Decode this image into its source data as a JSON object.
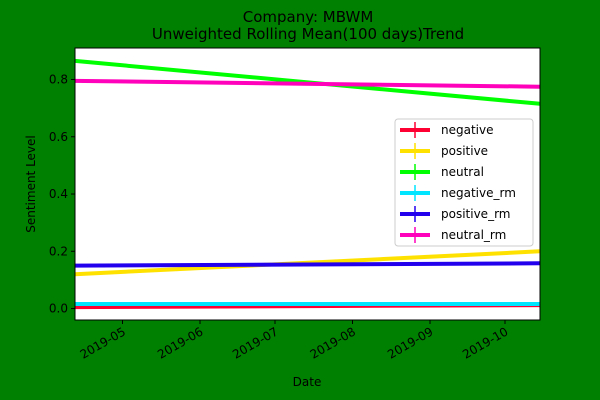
{
  "chart_data": {
    "type": "line",
    "title": "Company: MBWM",
    "subtitle": "Unweighted Rolling Mean(100 days)Trend",
    "xlabel": "Date",
    "ylabel": "Sentiment Level",
    "background_color": "#008000",
    "plot_background": "#ffffff",
    "x_tick_labels": [
      "2019-05",
      "2019-06",
      "2019-07",
      "2019-08",
      "2019-09",
      "2019-10"
    ],
    "y_tick_labels": [
      "0.0",
      "0.2",
      "0.4",
      "0.6",
      "0.8"
    ],
    "xlim": [
      "2019-04-12",
      "2019-10-15"
    ],
    "ylim": [
      -0.04,
      0.91
    ],
    "legend_position": "center-right",
    "grid": false,
    "series": [
      {
        "name": "negative",
        "color": "#ff0033",
        "x": [
          "2019-04-12",
          "2019-10-15"
        ],
        "values": [
          0.005,
          0.012
        ]
      },
      {
        "name": "positive",
        "color": "#ffe100",
        "x": [
          "2019-04-12",
          "2019-10-15"
        ],
        "values": [
          0.12,
          0.2
        ]
      },
      {
        "name": "neutral",
        "color": "#00ff00",
        "x": [
          "2019-04-12",
          "2019-10-15"
        ],
        "values": [
          0.865,
          0.715
        ]
      },
      {
        "name": "negative_rm",
        "color": "#00e5ff",
        "x": [
          "2019-04-12",
          "2019-10-15"
        ],
        "values": [
          0.016,
          0.016
        ]
      },
      {
        "name": "positive_rm",
        "color": "#2200ee",
        "x": [
          "2019-04-12",
          "2019-10-15"
        ],
        "values": [
          0.15,
          0.158
        ]
      },
      {
        "name": "neutral_rm",
        "color": "#ff00bb",
        "x": [
          "2019-04-12",
          "2019-10-15"
        ],
        "values": [
          0.795,
          0.775
        ]
      }
    ]
  }
}
